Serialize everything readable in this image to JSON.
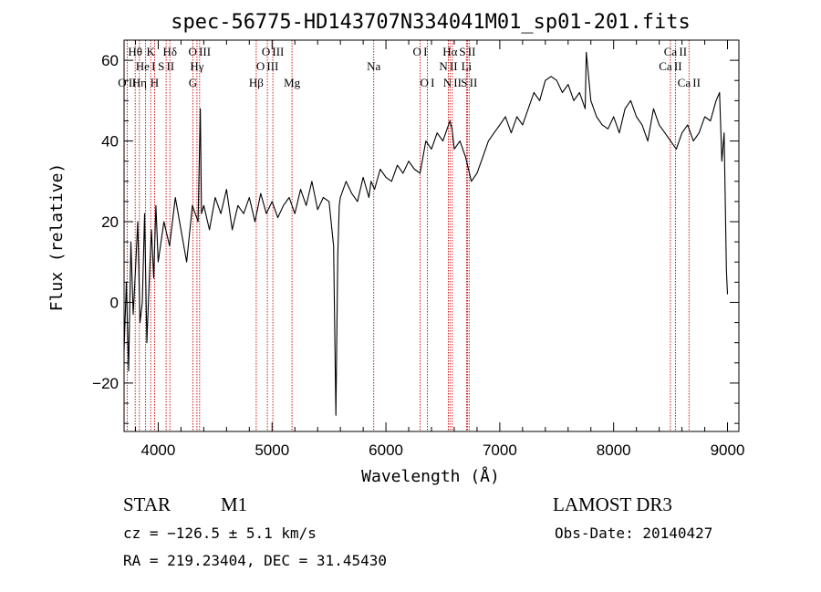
{
  "chart_data": {
    "type": "line",
    "title": "spec-56775-HD143707N334041M01_sp01-201.fits",
    "xlabel": "Wavelength (Å)",
    "ylabel": "Flux (relative)",
    "xlim": [
      3700,
      9100
    ],
    "ylim": [
      -32,
      65
    ],
    "xticks": [
      4000,
      5000,
      6000,
      7000,
      8000,
      9000
    ],
    "yticks": [
      -20,
      0,
      20,
      40,
      60
    ],
    "xtick_labels": [
      "4000",
      "5000",
      "6000",
      "7000",
      "8000",
      "9000"
    ],
    "ytick_labels": [
      "−20",
      "0",
      "20",
      "40",
      "60"
    ],
    "series": [
      {
        "name": "flux",
        "x": [
          3700,
          3720,
          3740,
          3760,
          3780,
          3800,
          3820,
          3840,
          3860,
          3880,
          3900,
          3920,
          3940,
          3960,
          3980,
          4000,
          4050,
          4100,
          4150,
          4200,
          4250,
          4300,
          4350,
          4370,
          4380,
          4400,
          4450,
          4500,
          4550,
          4600,
          4650,
          4700,
          4750,
          4800,
          4850,
          4900,
          4950,
          5000,
          5050,
          5100,
          5150,
          5200,
          5250,
          5300,
          5350,
          5400,
          5450,
          5500,
          5540,
          5560,
          5577,
          5590,
          5600,
          5650,
          5700,
          5750,
          5800,
          5850,
          5870,
          5900,
          5950,
          6000,
          6050,
          6100,
          6150,
          6200,
          6250,
          6300,
          6350,
          6400,
          6450,
          6500,
          6550,
          6563,
          6580,
          6600,
          6650,
          6700,
          6750,
          6800,
          6850,
          6900,
          6950,
          7000,
          7050,
          7100,
          7150,
          7200,
          7250,
          7300,
          7350,
          7400,
          7450,
          7500,
          7550,
          7600,
          7650,
          7700,
          7750,
          7760,
          7800,
          7850,
          7900,
          7950,
          8000,
          8050,
          8100,
          8150,
          8200,
          8250,
          8300,
          8350,
          8400,
          8450,
          8500,
          8550,
          8600,
          8650,
          8700,
          8750,
          8800,
          8850,
          8900,
          8930,
          8950,
          8970,
          8990,
          9000
        ],
        "values": [
          -12,
          5,
          -17,
          15,
          -3,
          8,
          20,
          -5,
          0,
          22,
          -10,
          5,
          18,
          6,
          24,
          10,
          20,
          14,
          26,
          18,
          10,
          24,
          20,
          48,
          22,
          24,
          18,
          26,
          22,
          28,
          18,
          24,
          22,
          26,
          20,
          27,
          22,
          25,
          21,
          24,
          26,
          22,
          28,
          24,
          30,
          23,
          26,
          25,
          14,
          -28,
          12,
          24,
          26,
          30,
          27,
          25,
          31,
          26,
          30,
          28,
          33,
          31,
          30,
          34,
          32,
          35,
          33,
          32,
          40,
          38,
          42,
          40,
          44,
          45,
          43,
          38,
          40,
          36,
          30,
          32,
          36,
          40,
          42,
          44,
          46,
          42,
          46,
          44,
          48,
          52,
          50,
          55,
          56,
          55,
          52,
          54,
          50,
          52,
          48,
          62,
          50,
          46,
          44,
          43,
          46,
          42,
          48,
          50,
          46,
          44,
          40,
          48,
          44,
          42,
          40,
          38,
          42,
          44,
          40,
          42,
          46,
          45,
          50,
          52,
          35,
          42,
          8,
          2
        ]
      }
    ],
    "emission_lines": [
      {
        "label": "O II",
        "wavelength": 3727,
        "row": 3
      },
      {
        "label": "Hθ",
        "wavelength": 3798,
        "row": 1
      },
      {
        "label": "Hη",
        "wavelength": 3835,
        "row": 3
      },
      {
        "label": "He I",
        "wavelength": 3889,
        "row": 2
      },
      {
        "label": "K",
        "wavelength": 3934,
        "row": 1
      },
      {
        "label": "H",
        "wavelength": 3968,
        "row": 3
      },
      {
        "label": "S II",
        "wavelength": 4069,
        "row": 2
      },
      {
        "label": "Hδ",
        "wavelength": 4102,
        "row": 1
      },
      {
        "label": "G",
        "wavelength": 4304,
        "row": 3
      },
      {
        "label": "Hγ",
        "wavelength": 4340,
        "row": 2
      },
      {
        "label": "O III",
        "wavelength": 4363,
        "row": 1
      },
      {
        "label": "Hβ",
        "wavelength": 4861,
        "row": 3
      },
      {
        "label": "O III",
        "wavelength": 4959,
        "row": 2
      },
      {
        "label": "O III",
        "wavelength": 5007,
        "row": 1
      },
      {
        "label": "Mg",
        "wavelength": 5175,
        "row": 3
      },
      {
        "label": "Na",
        "wavelength": 5893,
        "row": 2
      },
      {
        "label": "O I",
        "wavelength": 6300,
        "row": 1
      },
      {
        "label": "O I",
        "wavelength": 6364,
        "row": 3
      },
      {
        "label": "N II",
        "wavelength": 6548,
        "row": 2
      },
      {
        "label": "Hα",
        "wavelength": 6563,
        "row": 1
      },
      {
        "label": "N II",
        "wavelength": 6583,
        "row": 3
      },
      {
        "label": "Li",
        "wavelength": 6708,
        "row": 2
      },
      {
        "label": "S II",
        "wavelength": 6716,
        "row": 1
      },
      {
        "label": "S II",
        "wavelength": 6731,
        "row": 3
      },
      {
        "label": "Ca II",
        "wavelength": 8498,
        "row": 2
      },
      {
        "label": "Ca II",
        "wavelength": 8542,
        "row": 1
      },
      {
        "label": "Ca II",
        "wavelength": 8662,
        "row": 3
      }
    ]
  },
  "info": {
    "class_label": "STAR",
    "subclass_label": "M1",
    "survey_label": "LAMOST DR3",
    "redshift_text": "cz = −126.5 ± 5.1 km/s",
    "obsdate_text": "Obs-Date: 20140427",
    "coords_text": "RA = 219.23404, DEC =  31.45430"
  },
  "colors": {
    "spectrum": "#000000",
    "marker_lines": "#cc0000",
    "axes": "#000000",
    "background": "#ffffff"
  }
}
